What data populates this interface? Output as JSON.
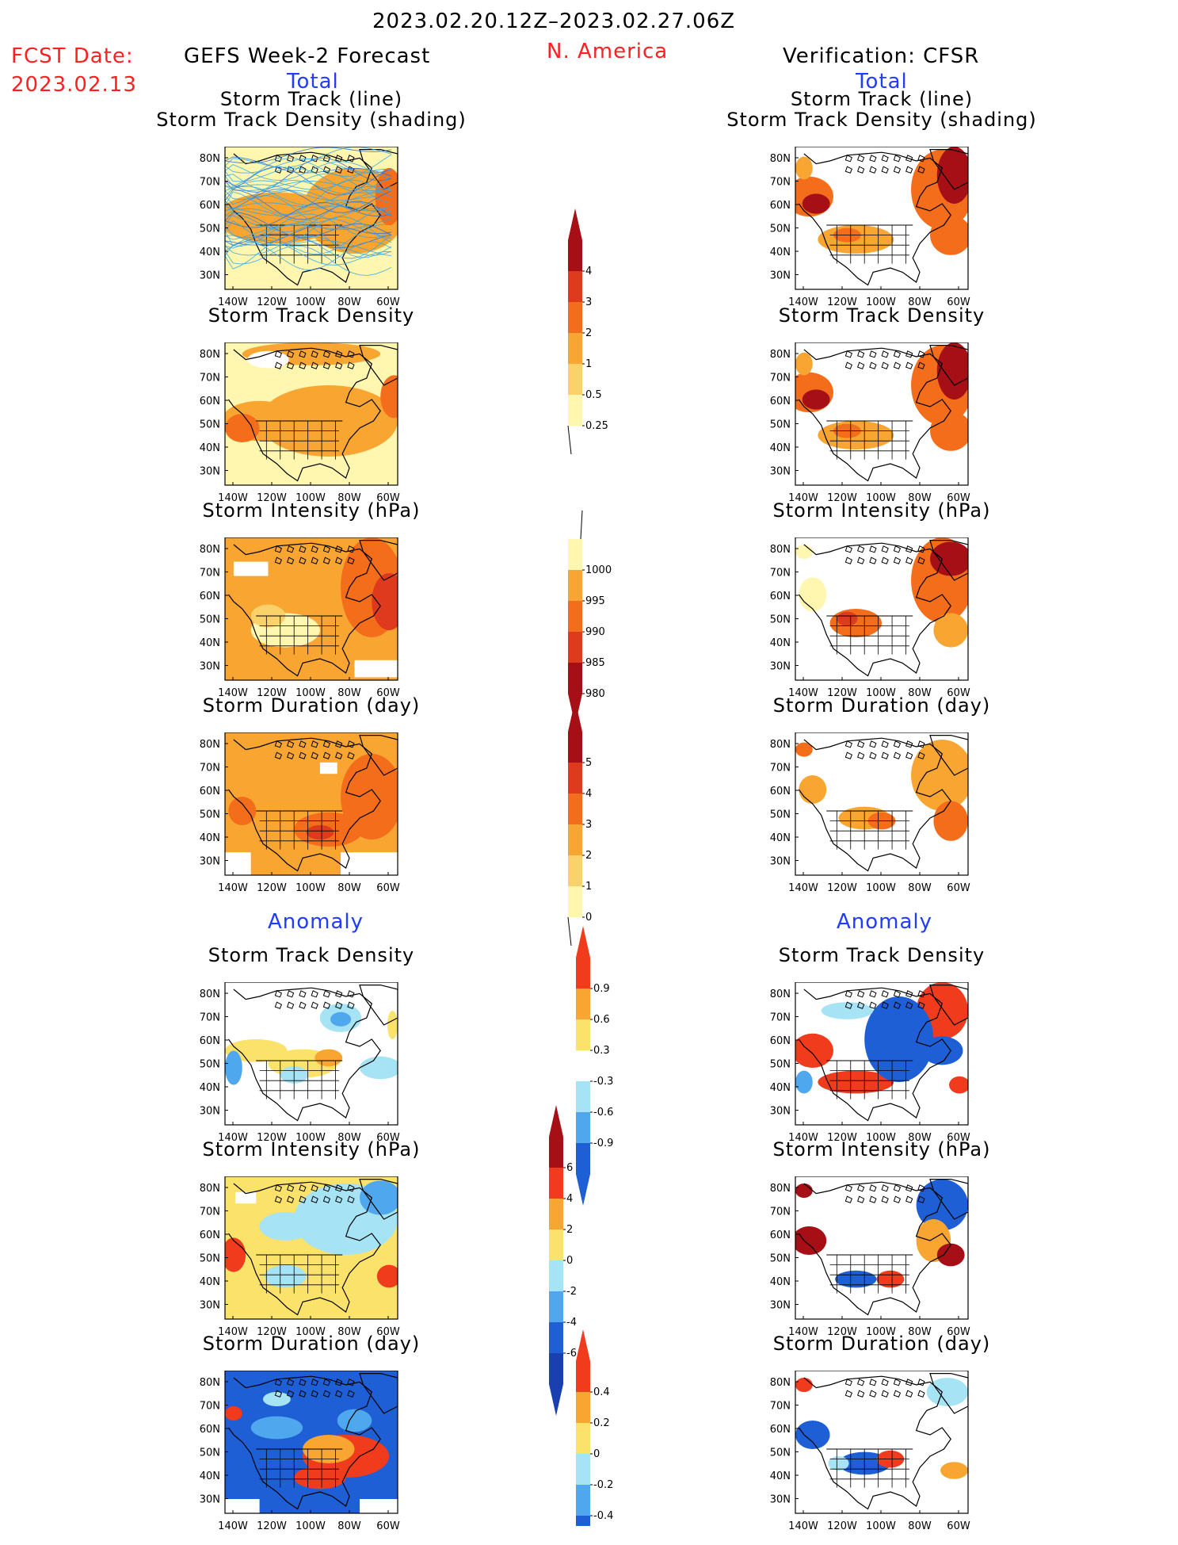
{
  "header": {
    "period": "2023.02.20.12Z–2023.02.27.06Z",
    "region": "N. America",
    "fcst_label": "FCST Date:",
    "fcst_date": "2023.02.13",
    "left_title": "GEFS Week-2 Forecast",
    "right_title": "Verification: CFSR",
    "left_total": "Total",
    "right_total": "Total",
    "left_anomaly": "Anomaly",
    "right_anomaly": "Anomaly"
  },
  "axes": {
    "lat_labels": [
      "80N",
      "70N",
      "60N",
      "50N",
      "40N",
      "30N"
    ],
    "lon_labels": [
      "140W",
      "120W",
      "100W",
      "80W",
      "60W"
    ]
  },
  "panels": {
    "left": [
      {
        "title1": "Storm Track (line)",
        "title2": "Storm Track Density (shading)",
        "style": "gefs-track"
      },
      {
        "title1": "Storm Track Density",
        "style": "gefs-density"
      },
      {
        "title1": "Storm Intensity (hPa)",
        "style": "gefs-intensity"
      },
      {
        "title1": "Storm Duration (day)",
        "style": "gefs-duration"
      },
      {
        "title1": "Storm Track Density",
        "style": "gefs-anom-density"
      },
      {
        "title1": "Storm Intensity (hPa)",
        "style": "gefs-anom-intensity"
      },
      {
        "title1": "Storm Duration (day)",
        "style": "gefs-anom-duration"
      }
    ],
    "right": [
      {
        "title1": "Storm Track (line)",
        "title2": "Storm Track Density (shading)",
        "style": "cfsr-track"
      },
      {
        "title1": "Storm Track Density",
        "style": "cfsr-density"
      },
      {
        "title1": "Storm Intensity (hPa)",
        "style": "cfsr-intensity"
      },
      {
        "title1": "Storm Duration (day)",
        "style": "cfsr-duration"
      },
      {
        "title1": "Storm Track Density",
        "style": "cfsr-anom-density"
      },
      {
        "title1": "Storm Intensity (hPa)",
        "style": "cfsr-anom-intensity"
      },
      {
        "title1": "Storm Duration (day)",
        "style": "cfsr-anom-duration"
      }
    ]
  },
  "colorbars": {
    "density": {
      "labels": [
        "4",
        "3",
        "2",
        "1",
        "0.5",
        "0.25"
      ],
      "colors": [
        "#a50f15",
        "#e03a1e",
        "#f46d1a",
        "#f8a531",
        "#fbd26a",
        "#fff7b0"
      ]
    },
    "intensity": {
      "labels": [
        "1000",
        "995",
        "990",
        "985",
        "980"
      ],
      "colors": [
        "#fff7b0",
        "#f8a531",
        "#f46d1a",
        "#e03a1e",
        "#a50f15"
      ]
    },
    "duration": {
      "labels": [
        "5",
        "4",
        "3",
        "2",
        "1",
        "0"
      ],
      "colors": [
        "#a50f15",
        "#e03a1e",
        "#f46d1a",
        "#f8a531",
        "#fbd26a",
        "#fff7b0"
      ]
    },
    "anom_density": {
      "labels": [
        "0.9",
        "0.6",
        "0.3",
        "-0.3",
        "-0.6",
        "-0.9"
      ],
      "colors": [
        "#f03b1d",
        "#f8a531",
        "#fbe26a",
        "#ffffff",
        "#a6e3f5",
        "#4fa7ee",
        "#1e5fd6"
      ]
    },
    "anom_intensity": {
      "labels": [
        "6",
        "4",
        "2",
        "0",
        "-2",
        "-4",
        "-6"
      ],
      "colors": [
        "#a50f15",
        "#f03b1d",
        "#f8a531",
        "#fbe26a",
        "#a6e3f5",
        "#4fa7ee",
        "#1e5fd6",
        "#1a3fb0"
      ]
    },
    "anom_duration": {
      "labels": [
        "0.4",
        "0.2",
        "0",
        "-0.2",
        "-0.4"
      ],
      "colors": [
        "#f03b1d",
        "#f8a531",
        "#fbe26a",
        "#a6e3f5",
        "#4fa7ee",
        "#1e5fd6"
      ]
    }
  }
}
